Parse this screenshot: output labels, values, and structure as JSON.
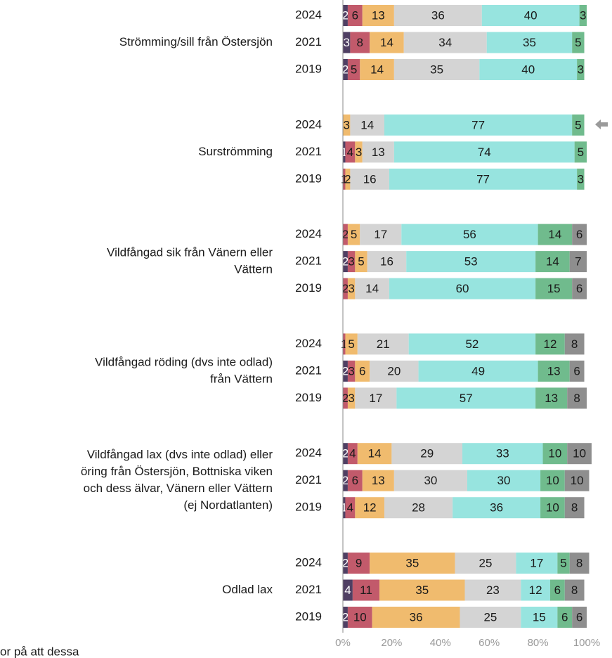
{
  "chart_data": {
    "type": "stacked-bar-horizontal",
    "group_labels": [
      [
        "Strömming/sill från Östersjön"
      ],
      [
        "Surströmming"
      ],
      [
        "Vildfångad sik från Vänern eller",
        "Vättern"
      ],
      [
        "Vildfångad röding (dvs inte odlad)",
        "från Vättern"
      ],
      [
        "Vildfångad lax (dvs inte odlad) eller",
        "öring från Östersjön, Bottniska viken",
        "och dess älvar, Vänern eller Vättern",
        "(ej Nordatlanten)"
      ],
      [
        "Odlad lax"
      ]
    ],
    "categories": [
      "2024",
      "2021",
      "2019",
      "2024",
      "2021",
      "2019",
      "2024",
      "2021",
      "2019",
      "2024",
      "2021",
      "2019",
      "2024",
      "2021",
      "2019",
      "2024",
      "2021",
      "2019"
    ],
    "series": [
      {
        "color": "#4f3f63",
        "values": [
          2,
          3,
          2,
          null,
          1,
          null,
          null,
          2,
          null,
          null,
          2,
          null,
          2,
          2,
          1,
          2,
          4,
          2
        ]
      },
      {
        "color": "#c25a6b",
        "values": [
          6,
          8,
          5,
          null,
          4,
          1,
          2,
          3,
          2,
          1,
          3,
          2,
          4,
          6,
          4,
          9,
          11,
          10
        ]
      },
      {
        "color": "#f0bb6e",
        "values": [
          13,
          14,
          14,
          3,
          3,
          2,
          5,
          5,
          3,
          5,
          6,
          3,
          14,
          13,
          12,
          35,
          35,
          36
        ]
      },
      {
        "color": "#d4d4d4",
        "values": [
          36,
          34,
          35,
          14,
          13,
          16,
          17,
          16,
          14,
          21,
          20,
          17,
          29,
          30,
          28,
          25,
          23,
          25
        ]
      },
      {
        "color": "#97e4df",
        "values": [
          40,
          35,
          40,
          77,
          74,
          77,
          56,
          53,
          60,
          52,
          49,
          57,
          33,
          30,
          36,
          17,
          12,
          15
        ]
      },
      {
        "color": "#70bb8d",
        "values": [
          3,
          5,
          3,
          5,
          5,
          3,
          14,
          14,
          15,
          12,
          13,
          13,
          10,
          10,
          10,
          5,
          6,
          6
        ]
      },
      {
        "color": "#8e8e8e",
        "values": [
          null,
          null,
          null,
          null,
          null,
          null,
          6,
          7,
          6,
          8,
          6,
          8,
          10,
          10,
          8,
          8,
          8,
          6
        ]
      }
    ],
    "xlim": [
      0,
      100
    ],
    "xticks": [
      {
        "value": 0,
        "label": "0%"
      },
      {
        "value": 20,
        "label": "20%"
      },
      {
        "value": 40,
        "label": "40%"
      },
      {
        "value": 60,
        "label": "60%"
      },
      {
        "value": 80,
        "label": "80%"
      },
      {
        "value": 100,
        "label": "100%"
      }
    ],
    "footnote": "or på att dessa"
  }
}
